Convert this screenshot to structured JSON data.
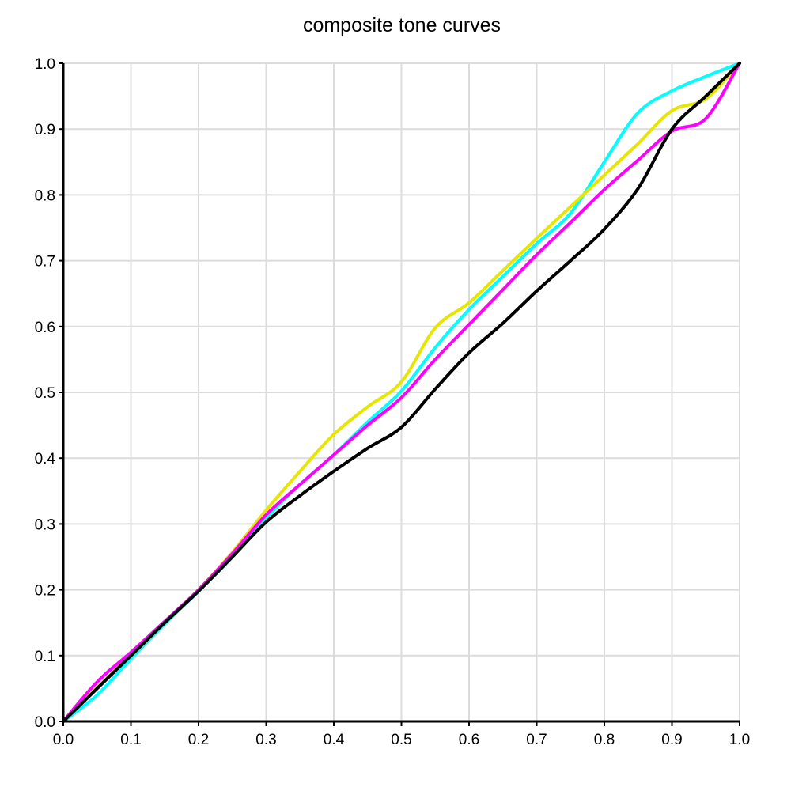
{
  "chart_data": {
    "type": "line",
    "title": "composite tone curves",
    "xlabel": "",
    "ylabel": "",
    "xlim": [
      0.0,
      1.0
    ],
    "ylim": [
      0.0,
      1.0
    ],
    "grid": true,
    "legend": null,
    "x_ticks": [
      "0.0",
      "0.1",
      "0.2",
      "0.3",
      "0.4",
      "0.5",
      "0.6",
      "0.7",
      "0.8",
      "0.9",
      "1.0"
    ],
    "y_ticks": [
      "0.0",
      "0.1",
      "0.2",
      "0.3",
      "0.4",
      "0.5",
      "0.6",
      "0.7",
      "0.8",
      "0.9",
      "1.0"
    ],
    "x": [
      0.0,
      0.05,
      0.1,
      0.15,
      0.2,
      0.25,
      0.3,
      0.35,
      0.4,
      0.45,
      0.5,
      0.55,
      0.6,
      0.65,
      0.7,
      0.75,
      0.8,
      0.85,
      0.9,
      0.95,
      1.0
    ],
    "series": [
      {
        "name": "cyan",
        "color": "#00ffff",
        "values": [
          0.0,
          0.04,
          0.095,
          0.148,
          0.198,
          0.25,
          0.309,
          0.36,
          0.405,
          0.455,
          0.502,
          0.568,
          0.626,
          0.676,
          0.726,
          0.772,
          0.85,
          0.925,
          0.958,
          0.98,
          1.0
        ]
      },
      {
        "name": "yellow",
        "color": "#e6e600",
        "values": [
          0.0,
          0.052,
          0.1,
          0.15,
          0.2,
          0.257,
          0.321,
          0.38,
          0.436,
          0.478,
          0.516,
          0.598,
          0.636,
          0.685,
          0.734,
          0.782,
          0.83,
          0.878,
          0.928,
          0.946,
          1.0
        ]
      },
      {
        "name": "magenta",
        "color": "#ff00ff",
        "values": [
          0.0,
          0.06,
          0.105,
          0.152,
          0.2,
          0.255,
          0.314,
          0.36,
          0.405,
          0.45,
          0.492,
          0.55,
          0.603,
          0.656,
          0.709,
          0.758,
          0.808,
          0.853,
          0.897,
          0.916,
          1.0
        ]
      },
      {
        "name": "black",
        "color": "#000000",
        "values": [
          0.0,
          0.05,
          0.1,
          0.15,
          0.198,
          0.25,
          0.303,
          0.343,
          0.38,
          0.415,
          0.447,
          0.505,
          0.56,
          0.605,
          0.654,
          0.7,
          0.748,
          0.81,
          0.9,
          0.95,
          1.0
        ]
      }
    ]
  }
}
